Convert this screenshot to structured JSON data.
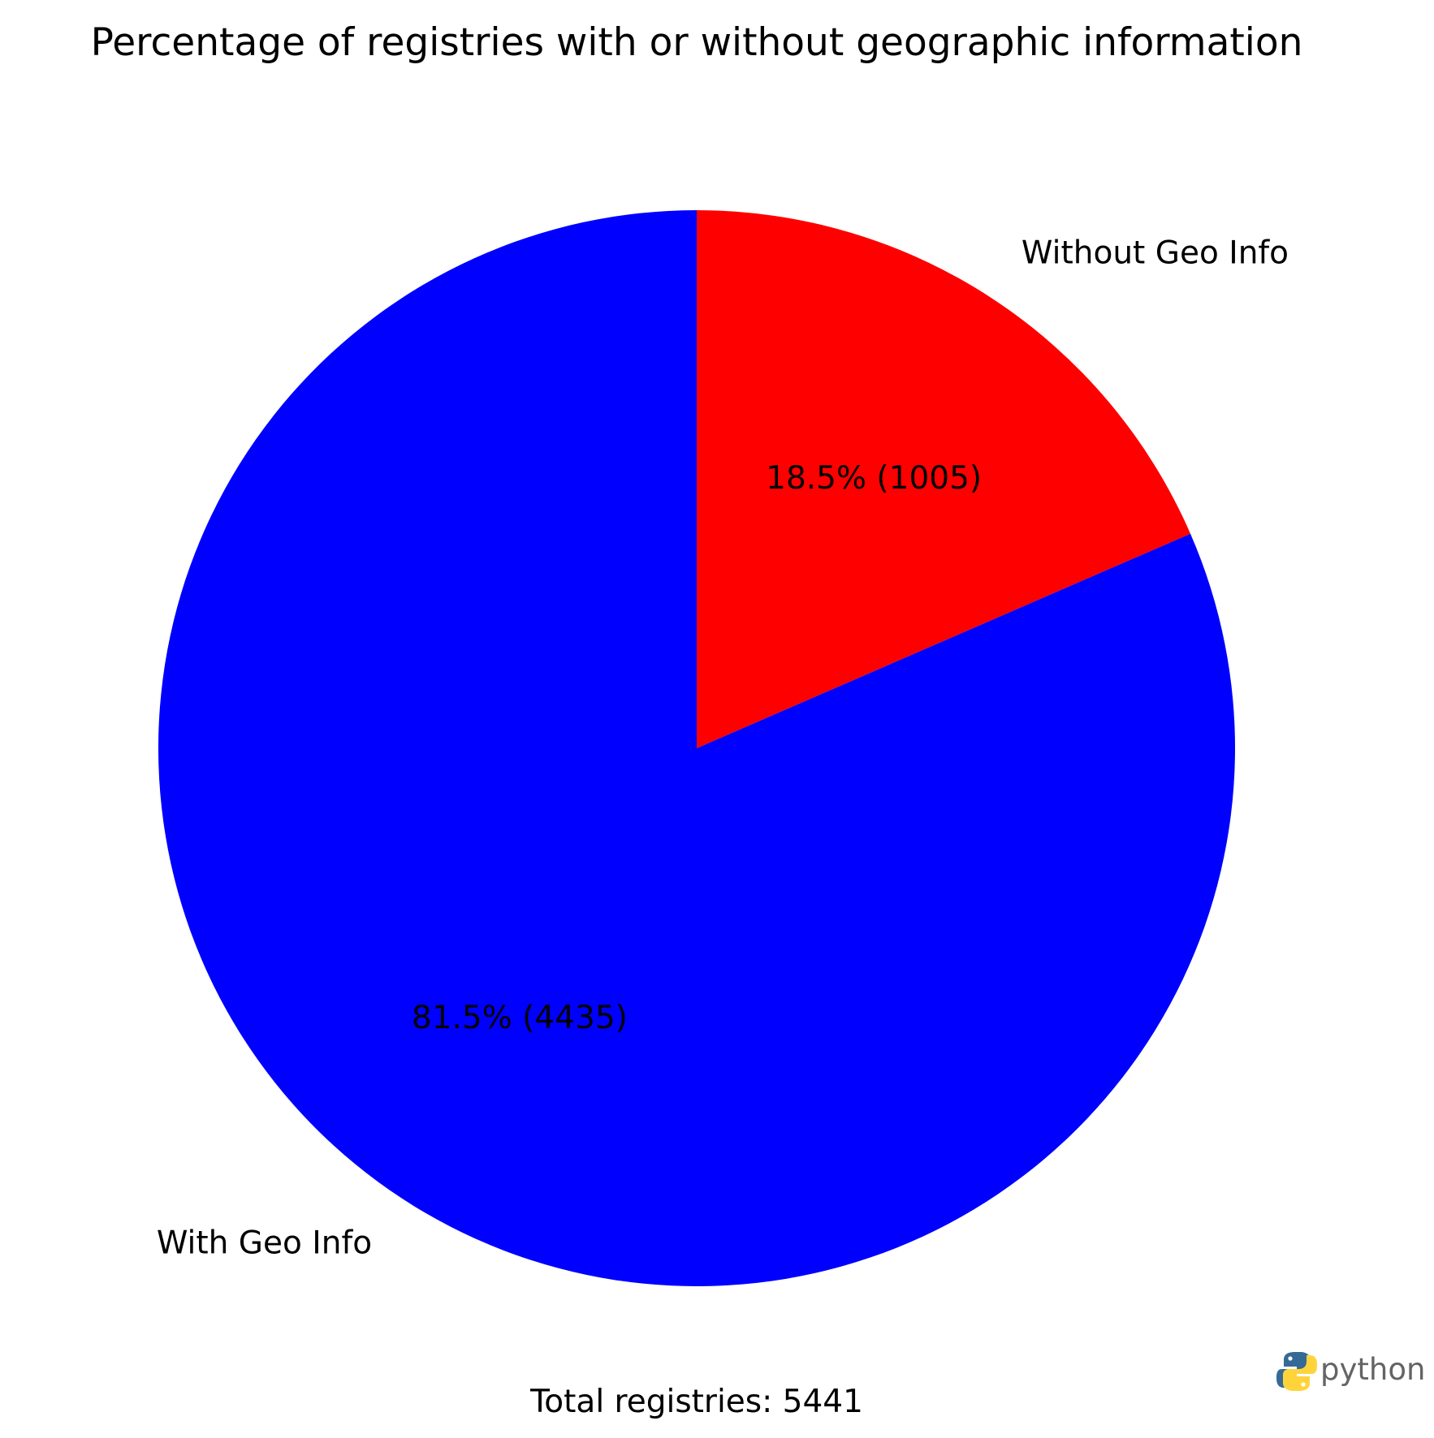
{
  "chart_data": {
    "type": "pie",
    "title": "Percentage of registries with or without geographic information",
    "start_angle_deg": 90,
    "direction": "clockwise",
    "slices": [
      {
        "label": "Without Geo Info",
        "value": 1005,
        "percent": 18.5,
        "pct_label": "18.5% (1005)",
        "color": "#ff0000"
      },
      {
        "label": "With Geo Info",
        "value": 4435,
        "percent": 81.5,
        "pct_label": "81.5% (4435)",
        "color": "#0000ff"
      }
    ],
    "footer": "Total registries: 5441"
  },
  "logo": {
    "text": "python",
    "icon": "python-logo-icon",
    "colors": {
      "blue": "#366a96",
      "yellow": "#ffd43b",
      "text": "#646464"
    }
  }
}
